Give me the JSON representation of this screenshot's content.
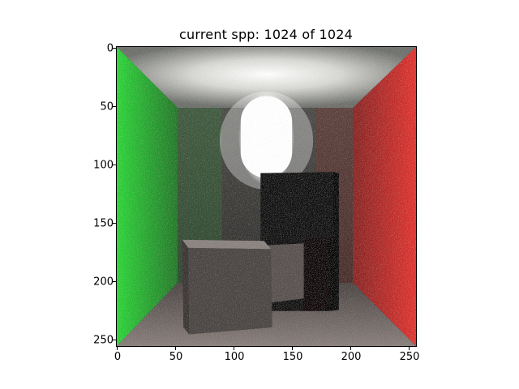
{
  "title": "current spp: 1024 of 1024",
  "figure": {
    "type": "image",
    "xlim": [
      0,
      256
    ],
    "ylim": [
      256,
      0
    ],
    "x_ticks": [
      "0",
      "50",
      "100",
      "150",
      "200",
      "250"
    ],
    "y_ticks": [
      "0",
      "50",
      "100",
      "150",
      "200",
      "250"
    ],
    "scene": {
      "left_wall_color": "#2fcf39",
      "right_wall_color": "#d8312c",
      "back_wall_color": "#3a3a36",
      "ceiling_color": "#b8bab6",
      "floor_color": "#6e6460",
      "short_box_color": "#4a4442",
      "tall_box_color": "#0a0707",
      "light_color": "#ffffff"
    }
  }
}
